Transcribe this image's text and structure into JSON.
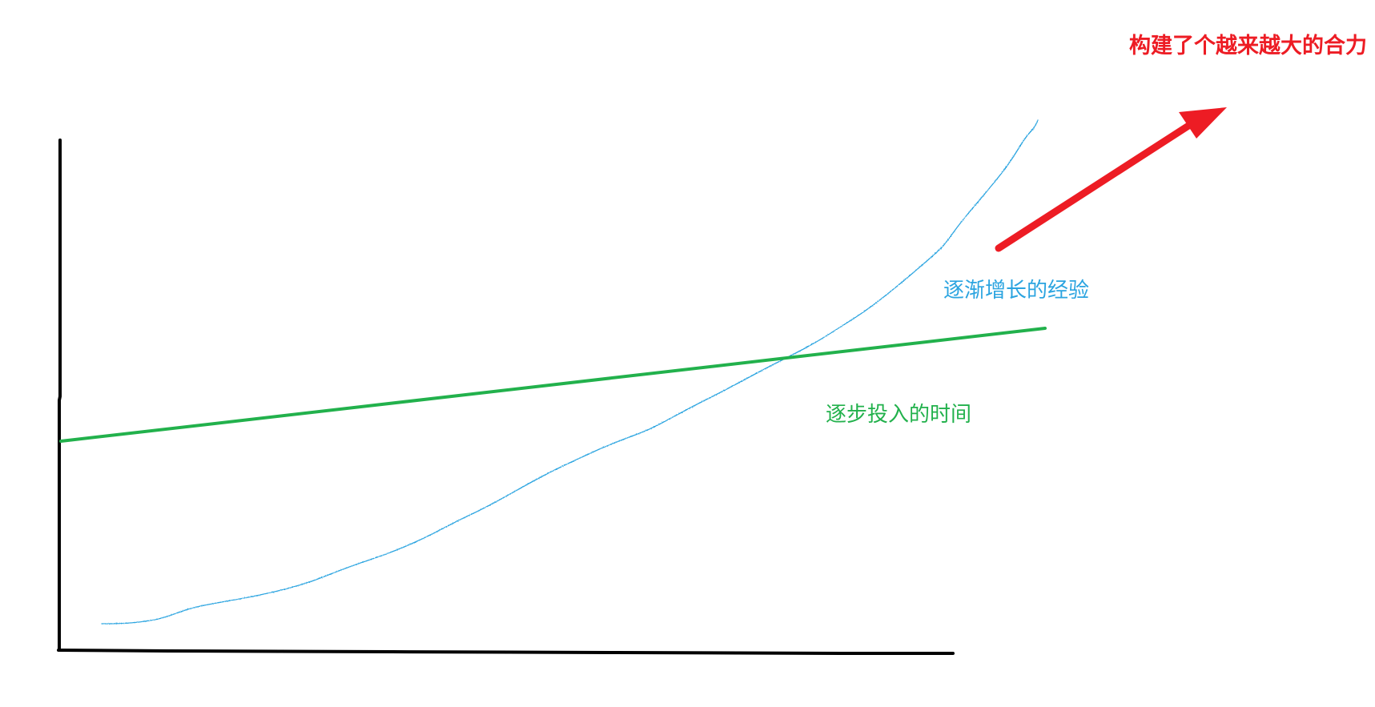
{
  "title": "构建了个越来越大的合力",
  "series": {
    "time": {
      "label": "逐步投入的时间",
      "color": "#22b14c",
      "trend": "linear"
    },
    "experience": {
      "label": "逐渐增长的经验",
      "color": "#2ba4e0",
      "trend": "exponential"
    }
  },
  "arrow": {
    "color": "#ed1c24",
    "meaning": "increasing"
  },
  "axes": {
    "color": "#000000"
  }
}
